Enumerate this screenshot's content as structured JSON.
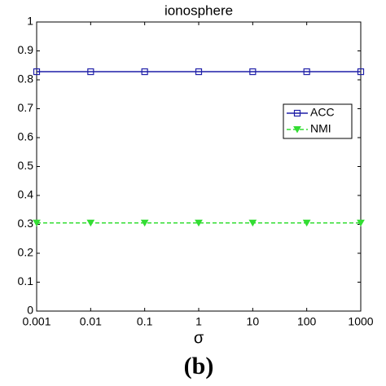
{
  "chart_data": {
    "type": "line",
    "title": "ionosphere",
    "x_label": "σ",
    "caption": "(b)",
    "categories": [
      "0.001",
      "0.01",
      "0.1",
      "1",
      "10",
      "100",
      "1000"
    ],
    "series": [
      {
        "name": "ACC",
        "color": "#1f1fa8",
        "values": [
          0.828,
          0.828,
          0.828,
          0.828,
          0.828,
          0.828,
          0.828
        ]
      },
      {
        "name": "NMI",
        "color": "#33dd33",
        "values": [
          0.305,
          0.305,
          0.305,
          0.305,
          0.305,
          0.305,
          0.305
        ]
      }
    ],
    "ylim": [
      0,
      1
    ],
    "yticks": [
      0,
      0.1,
      0.2,
      0.3,
      0.4,
      0.5,
      0.6,
      0.7,
      0.8,
      0.9,
      1
    ],
    "legend": "upper-right"
  }
}
